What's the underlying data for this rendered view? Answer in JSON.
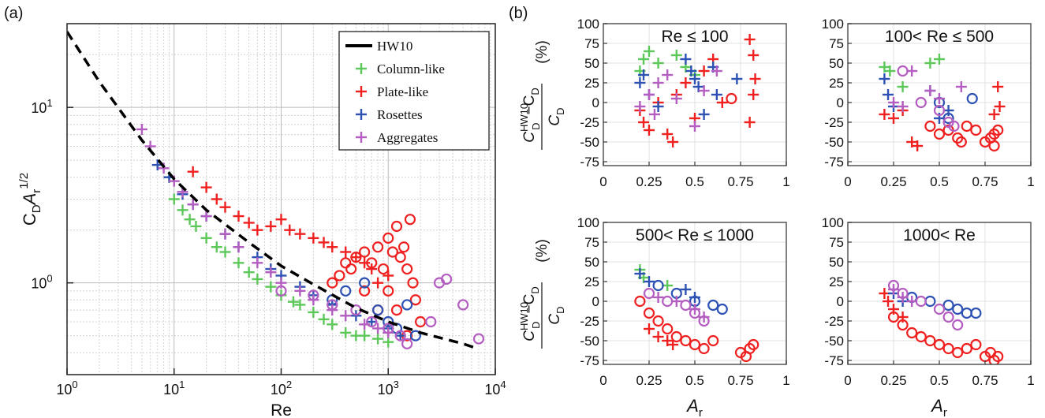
{
  "figure": {
    "label_a": "(a)",
    "label_b": "(b)"
  },
  "legend_labels": [
    "HW10",
    "Column-like",
    "Plate-like",
    "Rosettes",
    "Aggregates"
  ],
  "colors": {
    "HW10": "#000000",
    "Column-like": "#5cc85a",
    "Plate-like": "#ee2020",
    "Rosettes": "#2e52b4",
    "Aggregates": "#b35ec0"
  },
  "chart_data": [
    {
      "panel": "(a)",
      "type": "scatter",
      "xscale": "log",
      "yscale": "log",
      "xlim": [
        1,
        10000
      ],
      "ylim": [
        0.3,
        30
      ],
      "xlabel": "Re",
      "ylabel": "C_D A_r^1/2",
      "xticks": [
        "10^0",
        "10^1",
        "10^2",
        "10^3",
        "10^4"
      ],
      "yticks": [
        "10^0",
        "10^1"
      ],
      "grid": true,
      "legend_position": "top-right",
      "series": [
        {
          "name": "HW10",
          "style": "dashed-line",
          "x": [
            1,
            2,
            5,
            10,
            20,
            50,
            100,
            200,
            500,
            1000,
            2000,
            5000,
            7000
          ],
          "y": [
            27,
            14,
            6.5,
            3.9,
            2.6,
            1.7,
            1.25,
            0.98,
            0.72,
            0.6,
            0.52,
            0.45,
            0.42
          ]
        },
        {
          "name": "Column-like",
          "marker": "plus",
          "x": [
            9,
            10,
            12,
            14,
            16,
            20,
            25,
            30,
            40,
            50,
            60,
            80,
            100,
            130,
            150,
            200,
            250,
            300,
            400,
            500,
            600,
            800,
            1000
          ],
          "y": [
            4.0,
            3.0,
            2.6,
            2.3,
            2.1,
            1.8,
            1.6,
            1.5,
            1.3,
            1.15,
            1.05,
            0.95,
            0.85,
            0.78,
            0.75,
            0.68,
            0.62,
            0.58,
            0.52,
            0.5,
            0.5,
            0.48,
            0.46
          ]
        },
        {
          "name": "Plate-like",
          "marker": "plus",
          "x": [
            15,
            20,
            25,
            30,
            40,
            50,
            60,
            80,
            100,
            120,
            150,
            200,
            250,
            300,
            400,
            500,
            600,
            700,
            800,
            1000
          ],
          "y": [
            4.3,
            3.5,
            3.0,
            2.7,
            2.4,
            2.2,
            2.0,
            2.1,
            2.3,
            2.0,
            1.9,
            1.8,
            1.7,
            1.6,
            1.5,
            1.4,
            1.3,
            1.2,
            1.0,
            1.1
          ]
        },
        {
          "name": "Plate-like (hollow)",
          "marker": "circle",
          "x": [
            300,
            350,
            400,
            450,
            500,
            600,
            700,
            800,
            900,
            1000,
            1100,
            1200,
            1300,
            1400,
            1500,
            1700,
            1800,
            2000,
            1200,
            1500,
            1000,
            800,
            600,
            1600
          ],
          "y": [
            1.0,
            1.1,
            1.3,
            1.2,
            1.4,
            1.5,
            1.3,
            1.6,
            1.2,
            1.8,
            1.5,
            2.1,
            1.4,
            1.6,
            1.2,
            1.0,
            0.8,
            0.6,
            0.7,
            0.5,
            0.9,
            0.7,
            0.9,
            2.3
          ]
        },
        {
          "name": "Rosettes",
          "marker": "plus",
          "x": [
            7,
            9,
            12,
            15,
            20,
            30,
            40,
            60,
            80,
            100,
            150,
            200,
            300,
            500,
            700,
            1000,
            1300
          ],
          "y": [
            4.7,
            4.0,
            3.2,
            2.8,
            2.4,
            1.9,
            1.6,
            1.4,
            1.2,
            1.1,
            0.95,
            0.85,
            0.75,
            0.65,
            0.6,
            0.55,
            0.5
          ]
        },
        {
          "name": "Rosettes (hollow)",
          "marker": "circle",
          "x": [
            300,
            400,
            600,
            800,
            1000,
            1200,
            1500,
            1800
          ],
          "y": [
            0.8,
            0.9,
            1.0,
            0.7,
            0.6,
            0.55,
            0.75,
            0.5
          ]
        },
        {
          "name": "Aggregates",
          "marker": "plus",
          "x": [
            5,
            6,
            8,
            10,
            12,
            15,
            20,
            30,
            40,
            60,
            80,
            100,
            150,
            200,
            300,
            400,
            600,
            800,
            1000
          ],
          "y": [
            7.5,
            6.0,
            4.5,
            3.8,
            3.3,
            2.8,
            2.4,
            1.9,
            1.6,
            1.3,
            1.15,
            1.0,
            0.9,
            0.8,
            0.7,
            0.65,
            0.58,
            0.55,
            0.52
          ]
        },
        {
          "name": "Aggregates (hollow)",
          "marker": "circle",
          "x": [
            100,
            200,
            300,
            500,
            700,
            1000,
            1300,
            1500,
            2500,
            3000,
            3500,
            5000,
            7000
          ],
          "y": [
            0.9,
            0.85,
            0.75,
            0.7,
            0.6,
            0.55,
            0.5,
            0.45,
            0.6,
            1.0,
            1.05,
            0.75,
            0.48
          ]
        }
      ]
    },
    {
      "panel": "(b) top-left",
      "type": "scatter",
      "title": "Re ≤ 100",
      "xlim": [
        0,
        1
      ],
      "ylim": [
        -80,
        100
      ],
      "xticks": [
        "0",
        "0.25",
        "0.5",
        "0.75",
        "1"
      ],
      "yticks": [
        "-75",
        "-50",
        "-25",
        "0",
        "25",
        "50",
        "75",
        "100"
      ],
      "ylabel": "(C_D^HW10 − C_D)/C_D (%)",
      "grid": true,
      "series": [
        {
          "name": "Column-like",
          "marker": "plus",
          "x": [
            0.2,
            0.22,
            0.25,
            0.3,
            0.4,
            0.45,
            0.5
          ],
          "y": [
            40,
            55,
            65,
            50,
            60,
            45,
            35
          ]
        },
        {
          "name": "Plate-like",
          "marker": "plus",
          "x": [
            0.2,
            0.22,
            0.25,
            0.3,
            0.35,
            0.38,
            0.4,
            0.45,
            0.5,
            0.55,
            0.6,
            0.65,
            0.8,
            0.82,
            0.83,
            0.8,
            0.82
          ],
          "y": [
            -10,
            -25,
            -35,
            0,
            -40,
            -50,
            10,
            25,
            -20,
            40,
            55,
            0,
            80,
            60,
            30,
            -25,
            10
          ]
        },
        {
          "name": "Plate-like (hollow)",
          "marker": "circle",
          "x": [
            0.7
          ],
          "y": [
            5
          ]
        },
        {
          "name": "Rosettes",
          "marker": "plus",
          "x": [
            0.2,
            0.22,
            0.25,
            0.3,
            0.45,
            0.48,
            0.5,
            0.52,
            0.55,
            0.6,
            0.62,
            0.73
          ],
          "y": [
            25,
            35,
            10,
            -5,
            55,
            40,
            30,
            20,
            -15,
            45,
            10,
            30
          ]
        },
        {
          "name": "Aggregates",
          "marker": "plus",
          "x": [
            0.2,
            0.25,
            0.28,
            0.3,
            0.35,
            0.4,
            0.5,
            0.55,
            0.62
          ],
          "y": [
            -5,
            10,
            -15,
            25,
            35,
            5,
            -30,
            15,
            40
          ]
        }
      ]
    },
    {
      "panel": "(b) top-right",
      "type": "scatter",
      "title": "100< Re ≤ 500",
      "xlim": [
        0,
        1
      ],
      "ylim": [
        -80,
        100
      ],
      "xticks": [
        "0",
        "0.25",
        "0.5",
        "0.75",
        "1"
      ],
      "yticks": [
        "-75",
        "-50",
        "-25",
        "0",
        "25",
        "50",
        "75",
        "100"
      ],
      "grid": true,
      "series": [
        {
          "name": "Column-like",
          "marker": "plus",
          "x": [
            0.2,
            0.23,
            0.3,
            0.45,
            0.5
          ],
          "y": [
            45,
            40,
            20,
            50,
            55
          ]
        },
        {
          "name": "Plate-like",
          "marker": "plus",
          "x": [
            0.2,
            0.25,
            0.3,
            0.35,
            0.38,
            0.82,
            0.83,
            0.8
          ],
          "y": [
            -15,
            -20,
            -10,
            -50,
            -55,
            20,
            -5,
            -15
          ]
        },
        {
          "name": "Plate-like (hollow)",
          "marker": "circle",
          "x": [
            0.45,
            0.5,
            0.55,
            0.6,
            0.62,
            0.65,
            0.7,
            0.75,
            0.78,
            0.8,
            0.82,
            0.8
          ],
          "y": [
            -30,
            -40,
            -35,
            -45,
            -50,
            -30,
            -35,
            -50,
            -45,
            -40,
            -35,
            -55
          ]
        },
        {
          "name": "Rosettes",
          "marker": "plus",
          "x": [
            0.2,
            0.22,
            0.25,
            0.45,
            0.5,
            0.55
          ],
          "y": [
            30,
            10,
            -5,
            15,
            -20,
            -10
          ]
        },
        {
          "name": "Rosettes (hollow)",
          "marker": "circle",
          "x": [
            0.5,
            0.55,
            0.68
          ],
          "y": [
            0,
            -20,
            5
          ]
        },
        {
          "name": "Aggregates",
          "marker": "plus",
          "x": [
            0.25,
            0.3,
            0.35,
            0.45,
            0.5,
            0.62
          ],
          "y": [
            0,
            -5,
            40,
            15,
            5,
            20
          ]
        },
        {
          "name": "Aggregates (hollow)",
          "marker": "circle",
          "x": [
            0.3,
            0.4,
            0.5,
            0.55,
            0.58
          ],
          "y": [
            40,
            0,
            -10,
            -25,
            -30
          ]
        }
      ]
    },
    {
      "panel": "(b) bottom-left",
      "type": "scatter",
      "title": "500< Re ≤ 1000",
      "xlim": [
        0,
        1
      ],
      "ylim": [
        -80,
        100
      ],
      "xticks": [
        "0",
        "0.25",
        "0.5",
        "0.75",
        "1"
      ],
      "yticks": [
        "-75",
        "-50",
        "-25",
        "0",
        "25",
        "50",
        "75",
        "100"
      ],
      "xlabel": "A_r",
      "ylabel": "(C_D^HW10 − C_D)/C_D (%)",
      "grid": true,
      "series": [
        {
          "name": "Column-like",
          "marker": "plus",
          "x": [
            0.2,
            0.22,
            0.35
          ],
          "y": [
            40,
            30,
            20
          ]
        },
        {
          "name": "Plate-like",
          "marker": "plus",
          "x": [
            0.25,
            0.3,
            0.35,
            0.38
          ],
          "y": [
            -35,
            -45,
            -50,
            -55
          ]
        },
        {
          "name": "Plate-like (hollow)",
          "marker": "circle",
          "x": [
            0.2,
            0.25,
            0.3,
            0.35,
            0.4,
            0.45,
            0.5,
            0.55,
            0.6,
            0.75,
            0.78,
            0.8,
            0.82
          ],
          "y": [
            0,
            -15,
            -25,
            -35,
            -45,
            -50,
            -55,
            -60,
            -50,
            -65,
            -70,
            -60,
            -55
          ]
        },
        {
          "name": "Rosettes",
          "marker": "plus",
          "x": [
            0.2,
            0.25,
            0.45,
            0.5
          ],
          "y": [
            35,
            25,
            15,
            5
          ]
        },
        {
          "name": "Rosettes (hollow)",
          "marker": "circle",
          "x": [
            0.3,
            0.4,
            0.5,
            0.6,
            0.65
          ],
          "y": [
            20,
            10,
            0,
            -5,
            -10
          ]
        },
        {
          "name": "Aggregates",
          "marker": "plus",
          "x": [
            0.3,
            0.4,
            0.5,
            0.55
          ],
          "y": [
            5,
            0,
            -10,
            -20
          ]
        },
        {
          "name": "Aggregates (hollow)",
          "marker": "circle",
          "x": [
            0.25,
            0.35,
            0.45,
            0.5,
            0.55
          ],
          "y": [
            10,
            0,
            -5,
            -15,
            -25
          ]
        }
      ]
    },
    {
      "panel": "(b) bottom-right",
      "type": "scatter",
      "title": "1000< Re",
      "xlim": [
        0,
        1
      ],
      "ylim": [
        -80,
        100
      ],
      "xticks": [
        "0",
        "0.25",
        "0.5",
        "0.75",
        "1"
      ],
      "yticks": [
        "-75",
        "-50",
        "-25",
        "0",
        "25",
        "50",
        "75",
        "100"
      ],
      "xlabel": "A_r",
      "grid": true,
      "series": [
        {
          "name": "Plate-like",
          "marker": "plus",
          "x": [
            0.2,
            0.22,
            0.25,
            0.3
          ],
          "y": [
            10,
            0,
            -10,
            -20
          ]
        },
        {
          "name": "Plate-like (hollow)",
          "marker": "circle",
          "x": [
            0.25,
            0.3,
            0.35,
            0.4,
            0.45,
            0.5,
            0.55,
            0.6,
            0.65,
            0.7,
            0.75,
            0.78,
            0.8,
            0.82
          ],
          "y": [
            -20,
            -30,
            -40,
            -45,
            -50,
            -55,
            -60,
            -65,
            -60,
            -55,
            -70,
            -65,
            -75,
            -70
          ]
        },
        {
          "name": "Rosettes",
          "marker": "plus",
          "x": [
            0.25,
            0.3
          ],
          "y": [
            10,
            0
          ]
        },
        {
          "name": "Rosettes (hollow)",
          "marker": "circle",
          "x": [
            0.35,
            0.45,
            0.55,
            0.6,
            0.65,
            0.7
          ],
          "y": [
            5,
            0,
            -5,
            -10,
            -15,
            -15
          ]
        },
        {
          "name": "Aggregates",
          "marker": "plus",
          "x": [
            0.25,
            0.3,
            0.35
          ],
          "y": [
            15,
            5,
            0
          ]
        },
        {
          "name": "Aggregates (hollow)",
          "marker": "circle",
          "x": [
            0.25,
            0.3,
            0.4,
            0.5,
            0.55,
            0.6
          ],
          "y": [
            20,
            10,
            0,
            -10,
            -20,
            -30
          ]
        }
      ]
    }
  ]
}
